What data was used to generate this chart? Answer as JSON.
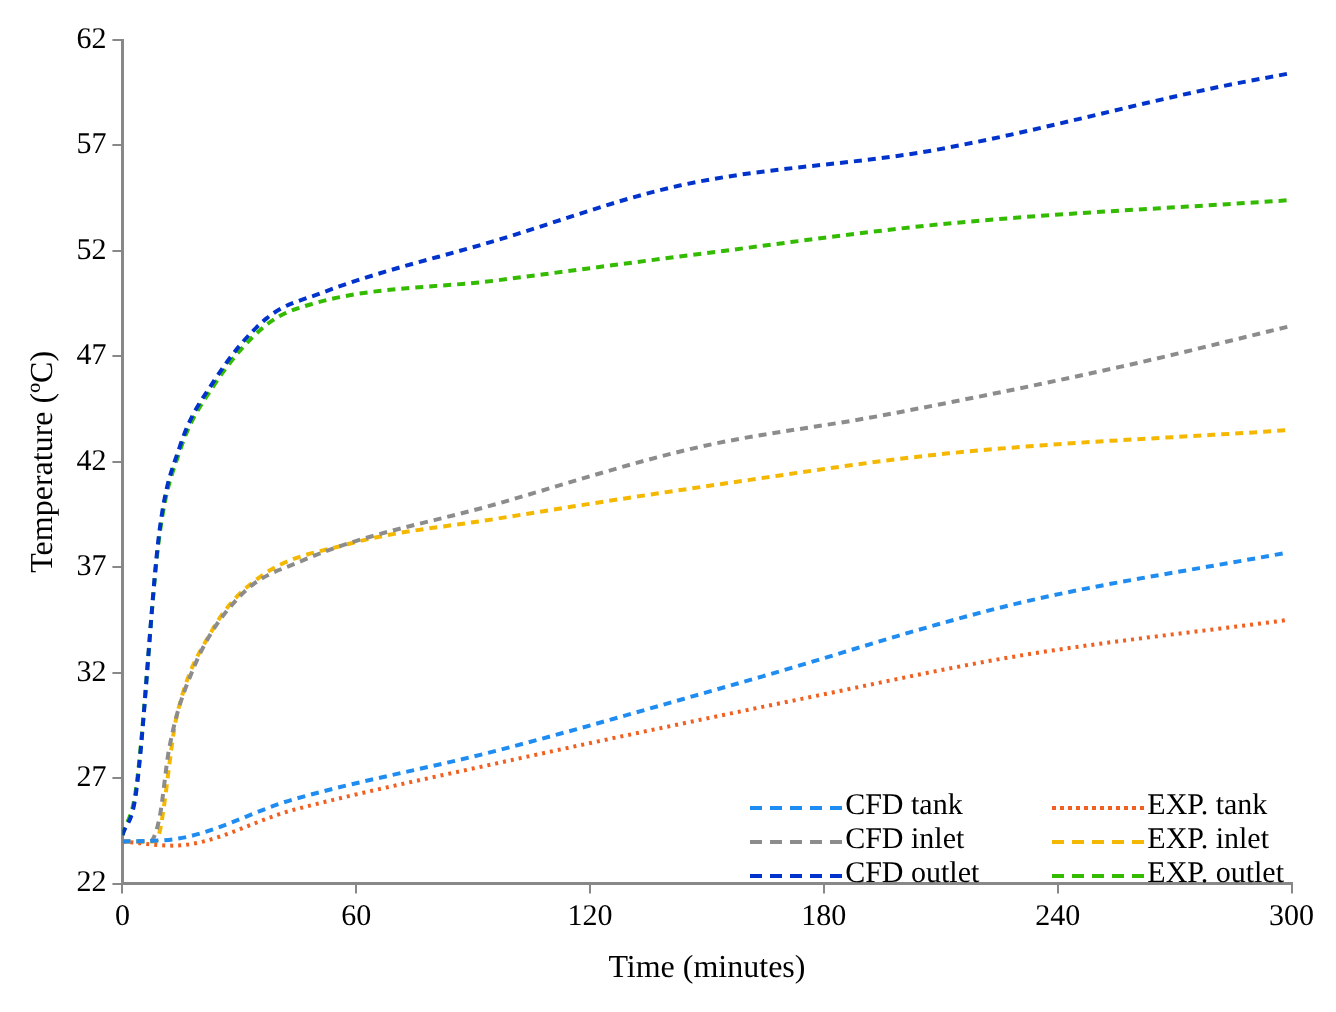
{
  "chart_data": {
    "type": "line",
    "xlabel": "Time (minutes)",
    "ylabel": "Temperature (ºC)",
    "xlim": [
      0,
      300
    ],
    "xticks": [
      0,
      60,
      120,
      180,
      240,
      300
    ],
    "ylim": [
      22,
      62
    ],
    "yticks": [
      22,
      27,
      32,
      37,
      42,
      47,
      52,
      57,
      62
    ],
    "grid": false,
    "legend": "bottom right",
    "marker": "none",
    "series": [
      {
        "name": "CFD tank",
        "color": "#1e8cf0",
        "line_style": "dashed",
        "x": [
          0,
          13,
          44,
          96,
          160,
          230,
          299
        ],
        "values": [
          24,
          24.1,
          26,
          28.3,
          31.6,
          35.3,
          37.7
        ]
      },
      {
        "name": "EXP. tank",
        "color": "#f06020",
        "line_style": "dotted",
        "x": [
          0,
          13,
          44,
          96,
          178,
          230,
          299
        ],
        "values": [
          24,
          23.8,
          25.5,
          27.7,
          30.9,
          32.8,
          34.5
        ]
      },
      {
        "name": "CFD inlet",
        "color": "#8c8c8c",
        "line_style": "dashed",
        "x": [
          0,
          7,
          9.5,
          12,
          18,
          30,
          46,
          96,
          148,
          195,
          256,
          299
        ],
        "values": [
          24,
          24,
          25.1,
          28.4,
          32.1,
          35.6,
          37.3,
          40,
          42.7,
          44.2,
          46.5,
          48.4
        ]
      },
      {
        "name": "EXP. inlet",
        "color": "#f5b800",
        "line_style": "dashed",
        "x": [
          0,
          8.5,
          14,
          23,
          35,
          58,
          96,
          152,
          212,
          299
        ],
        "values": [
          24,
          24,
          30,
          34,
          36.5,
          38.1,
          39.3,
          40.9,
          42.4,
          43.5
        ]
      },
      {
        "name": "CFD outlet",
        "color": "#0033cc",
        "line_style": "dashed",
        "x": [
          0,
          3.5,
          9.5,
          14.7,
          23.4,
          37,
          51,
          96,
          143,
          209,
          282,
          299
        ],
        "values": [
          24.3,
          26.3,
          38.7,
          42.7,
          45.8,
          48.8,
          50,
          52.5,
          55.1,
          56.8,
          59.8,
          60.4
        ]
      },
      {
        "name": "EXP. outlet",
        "color": "#33bb00",
        "line_style": "dashed",
        "x": [
          0,
          3.5,
          9.5,
          14.7,
          23.4,
          37,
          49,
          96,
          150,
          212,
          299
        ],
        "values": [
          24.3,
          26.5,
          38.5,
          42.5,
          45.6,
          48.5,
          49.5,
          50.6,
          51.9,
          53.3,
          54.4
        ]
      }
    ]
  }
}
